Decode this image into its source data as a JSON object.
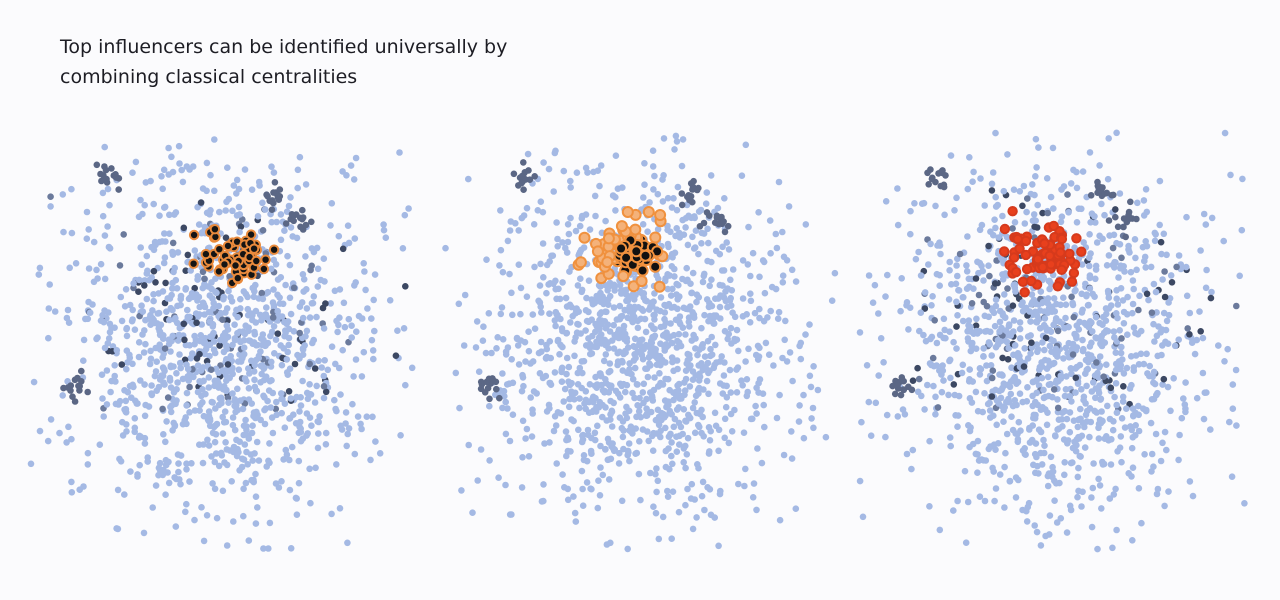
{
  "header": {
    "title_lines": [
      "Top influencers can be identified universally by",
      "combining classical centralities"
    ]
  }
}
